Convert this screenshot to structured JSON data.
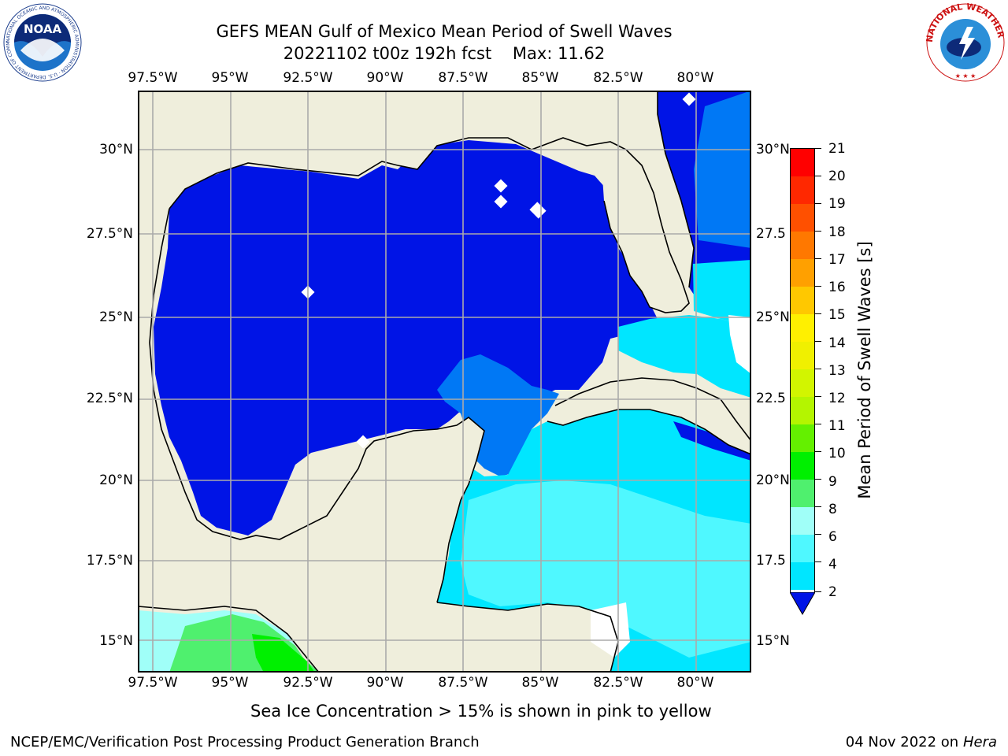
{
  "header": {
    "title": "GEFS MEAN Gulf of Mexico Mean Period of Swell Waves",
    "subtitle": "20221102 t00z 192h fcst",
    "max_label": "Max: 11.62"
  },
  "logos": {
    "noara_text": "NOAA",
    "noaa_ring": "NATIONAL OCEANIC AND ATMOSPHERIC ADMINISTRATION · U.S. DEPARTMENT OF COMMERCE",
    "nws_ring": "NATIONAL WEATHER SERVICE"
  },
  "map": {
    "lon_labels": [
      "97.5°W",
      "95°W",
      "92.5°W",
      "90°W",
      "87.5°W",
      "85°W",
      "82.5°W",
      "80°W"
    ],
    "lat_labels_left": [
      "30°N",
      "27.5°N",
      "25°N",
      "22.5°N",
      "20°N",
      "17.5°N",
      "15°N"
    ],
    "lat_labels_right": [
      "30°N",
      "27.5",
      "25°N",
      "22.5",
      "20°N",
      "17.5",
      "15°N"
    ],
    "colors": {
      "land": "#efeedc",
      "deep_blue": "#0014e6",
      "mid_blue": "#0078f5",
      "cyan": "#00e6ff",
      "light_cyan": "#4ff8ff",
      "pale_cyan": "#a0fff8",
      "light_green": "#4ff06e",
      "green": "#00f000",
      "grid": "#aaaaaa"
    }
  },
  "colorbar": {
    "label": "Mean Period of Swell Waves [s]",
    "ticks": [
      "21",
      "20",
      "19",
      "18",
      "17",
      "16",
      "15",
      "14",
      "13",
      "12",
      "11",
      "10",
      "9",
      "8",
      "6",
      "4",
      "2"
    ],
    "colors": [
      "#ff0000",
      "#ff2800",
      "#ff5000",
      "#ff7800",
      "#ffa000",
      "#ffc800",
      "#fff000",
      "#f0f000",
      "#d2f500",
      "#b4f500",
      "#64f000",
      "#00f000",
      "#4ff06e",
      "#a0fff8",
      "#4ff8ff",
      "#00e6ff",
      "#0078f5"
    ],
    "under_color": "#0014e6"
  },
  "caption": "Sea Ice Concentration > 15% is shown in pink to yellow",
  "footer": {
    "left": "NCEP/EMC/Verification Post Processing Product Generation Branch",
    "date": "04 Nov 2022 on",
    "machine": "Hera"
  }
}
